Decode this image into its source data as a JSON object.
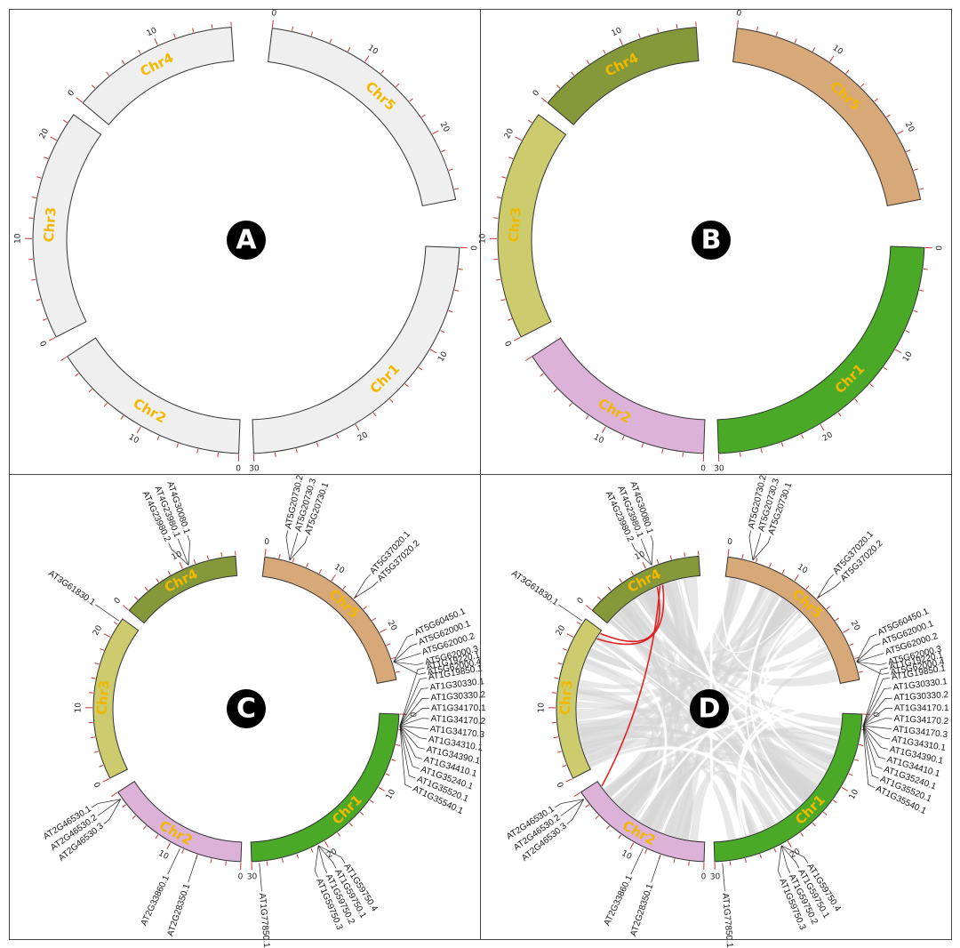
{
  "panels": [
    {
      "id": "A",
      "letter": "A",
      "mode": "gray"
    },
    {
      "id": "B",
      "letter": "B",
      "mode": "color"
    },
    {
      "id": "C",
      "letter": "C",
      "mode": "genes"
    },
    {
      "id": "D",
      "letter": "D",
      "mode": "links"
    }
  ],
  "chromosomes": [
    {
      "name": "Chr1",
      "label": "Chr1",
      "length": 30,
      "color": "#4aaa28",
      "ticks": [
        {
          "v": 0,
          "t": "0"
        },
        {
          "v": 10,
          "t": "10"
        },
        {
          "v": 20,
          "t": "20"
        },
        {
          "v": 30,
          "t": "30"
        }
      ]
    },
    {
      "name": "Chr2",
      "label": "Chr2",
      "length": 20,
      "color": "#dcb2d8",
      "ticks": [
        {
          "v": 0,
          "t": "0"
        },
        {
          "v": 10,
          "t": "10"
        }
      ]
    },
    {
      "name": "Chr3",
      "label": "Chr3",
      "length": 23,
      "color": "#cccc6e",
      "ticks": [
        {
          "v": 0,
          "t": "0"
        },
        {
          "v": 10,
          "t": "10"
        },
        {
          "v": 20,
          "t": "20"
        }
      ]
    },
    {
      "name": "Chr4",
      "label": "Chr4",
      "length": 18,
      "color": "#86993a",
      "ticks": [
        {
          "v": 0,
          "t": "0"
        },
        {
          "v": 10,
          "t": "10"
        }
      ]
    },
    {
      "name": "Chr5",
      "label": "Chr5",
      "length": 27,
      "color": "#d8a978",
      "ticks": [
        {
          "v": 0,
          "t": "0"
        },
        {
          "v": 10,
          "t": "10"
        },
        {
          "v": 20,
          "t": "20"
        }
      ]
    }
  ],
  "colors": {
    "gray_fill": "#efefef",
    "tick": "#cc3333",
    "link_highlight": "#dd2222",
    "link_background": "#d5d5d5",
    "border": "#444444"
  },
  "genes": [
    {
      "chr": "Chr1",
      "pos": 1.5,
      "labels": [
        "AT1G19220.1",
        "AT1G19850.1",
        "AT1G30330.1",
        "AT1G30330.2",
        "AT1G34170.1",
        "AT1G34170.2",
        "AT1G34170.3",
        "AT1G34310.1",
        "AT1G34390.1",
        "AT1G34410.1",
        "AT1G35240.1",
        "AT1G35520.1",
        "AT1G35540.1"
      ]
    },
    {
      "chr": "Chr1",
      "pos": 21,
      "labels": [
        "AT1G59750.4",
        "AT1G59750.1",
        "AT1G59750.2",
        "AT1G59750.3"
      ]
    },
    {
      "chr": "Chr1",
      "pos": 29,
      "labels": [
        "AT1G77850.1"
      ]
    },
    {
      "chr": "Chr2",
      "pos": 6,
      "labels": [
        "AT2G28350.1"
      ]
    },
    {
      "chr": "Chr2",
      "pos": 8.5,
      "labels": [
        "AT2G33860.1"
      ]
    },
    {
      "chr": "Chr2",
      "pos": 19,
      "labels": [
        "AT2G46530.3",
        "AT2G46530.2",
        "AT2G46530.1"
      ]
    },
    {
      "chr": "Chr3",
      "pos": 22.5,
      "labels": [
        "AT3G61830.1"
      ]
    },
    {
      "chr": "Chr4",
      "pos": 11,
      "labels": [
        "AT4G23980.2",
        "AT4G23980.1",
        "AT4G30080.1"
      ]
    },
    {
      "chr": "Chr5",
      "pos": 3.5,
      "labels": [
        "AT5G20730.2",
        "AT5G20730.3",
        "AT5G20730.1"
      ]
    },
    {
      "chr": "Chr5",
      "pos": 14,
      "labels": [
        "AT5G37020.1",
        "AT5G37020.2"
      ]
    },
    {
      "chr": "Chr5",
      "pos": 24.5,
      "labels": [
        "AT5G60450.1",
        "AT5G62000.1",
        "AT5G62000.2",
        "AT5G62000.3",
        "AT5G62000.4"
      ]
    }
  ],
  "highlight_links": [
    {
      "from": {
        "chr": "Chr4",
        "pos": 10.5
      },
      "to": {
        "chr": "Chr3",
        "pos": 22.5
      }
    },
    {
      "from": {
        "chr": "Chr4",
        "pos": 11
      },
      "to": {
        "chr": "Chr2",
        "pos": 19
      }
    },
    {
      "from": {
        "chr": "Chr3",
        "pos": 21.5
      },
      "to": {
        "chr": "Chr4",
        "pos": 11.5
      }
    }
  ]
}
